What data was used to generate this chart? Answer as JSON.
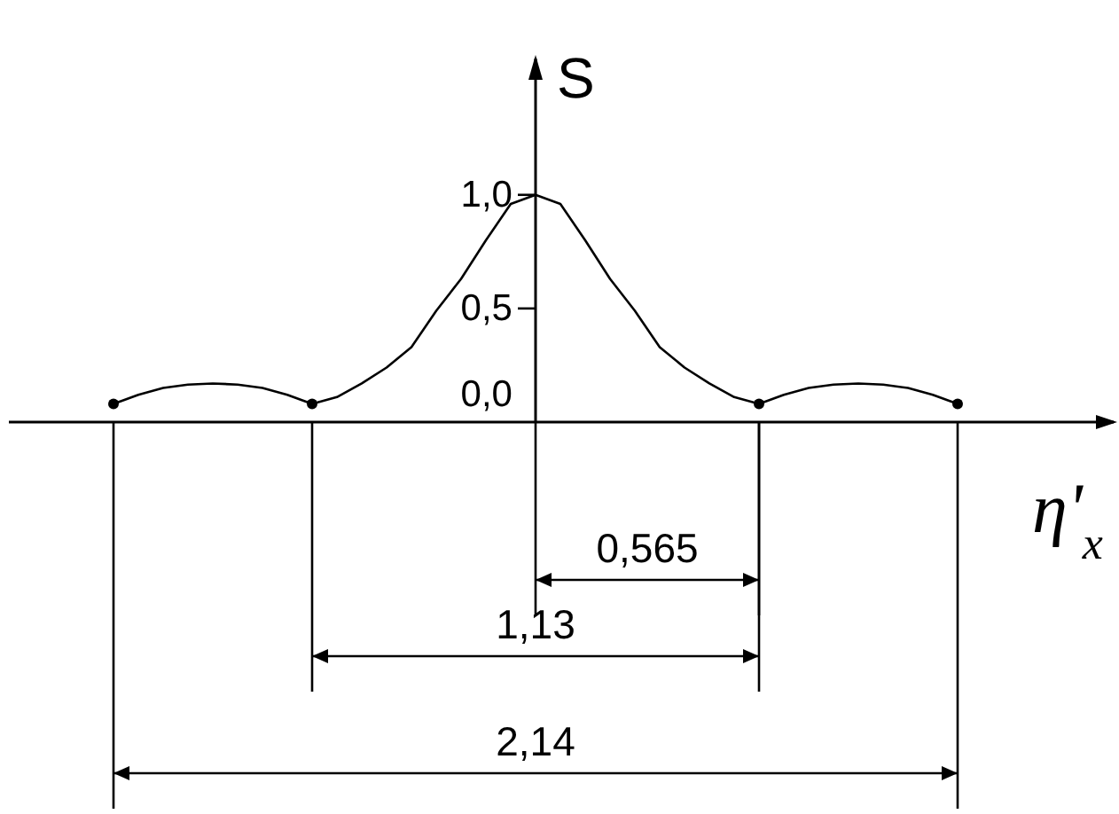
{
  "chart_data": {
    "type": "line",
    "ylabel": "S",
    "xlabel": "η'$_{x}$",
    "ylim": [
      0,
      1.6
    ],
    "yticks": [
      {
        "value": 0,
        "label": "0,0"
      },
      {
        "value": 0.5,
        "label": "0,5"
      },
      {
        "value": 1,
        "label": "1,0"
      }
    ],
    "tick_labels": "y",
    "categories": [
      null,
      null,
      null,
      null,
      null,
      null,
      null,
      null,
      null,
      null,
      null,
      null,
      null,
      null,
      null,
      null,
      null,
      null,
      null,
      null,
      null,
      null,
      null,
      null,
      null,
      null,
      null,
      null,
      null,
      null,
      null,
      null,
      null,
      null,
      null
    ],
    "series": [
      {
        "color": "#000000",
        "values": [
          0.08,
          0.12,
          0.15,
          0.165,
          0.17,
          0.165,
          0.15,
          0.12,
          0.08,
          0.11,
          0.17,
          0.24,
          0.33,
          0.49,
          0.63,
          0.8,
          0.96,
          1.0,
          0.96,
          0.8,
          0.63,
          0.49,
          0.33,
          0.24,
          0.17,
          0.11,
          0.08,
          0.12,
          0.15,
          0.165,
          0.17,
          0.165,
          0.15,
          0.12,
          0.08
        ]
      }
    ],
    "annotations": [
      "0,565",
      "1,13",
      "2,14"
    ]
  }
}
